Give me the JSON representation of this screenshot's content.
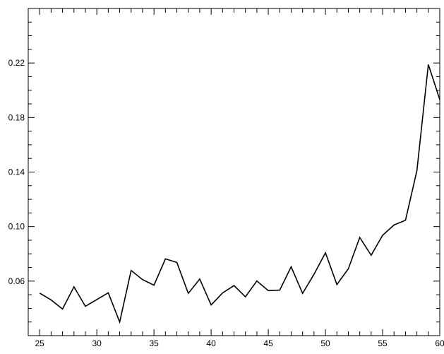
{
  "chart_data": {
    "type": "line",
    "title": "",
    "xlabel": "",
    "ylabel": "",
    "xlim": [
      24,
      60
    ],
    "ylim": [
      0.02,
      0.26
    ],
    "grid": false,
    "x_ticks_major": [
      25,
      30,
      35,
      40,
      45,
      50,
      55,
      60
    ],
    "x_tick_labels": [
      "25",
      "30",
      "35",
      "40",
      "45",
      "50",
      "55",
      "60"
    ],
    "y_ticks_major": [
      0.06,
      0.1,
      0.14,
      0.18,
      0.22
    ],
    "y_tick_labels": [
      "0.06",
      "0.10",
      "0.14",
      "0.18",
      "0.22"
    ],
    "line_color": "#000000",
    "series": [
      {
        "x": [
          25,
          26,
          27,
          28,
          29,
          30,
          31,
          32,
          33,
          34,
          35,
          36,
          37,
          38,
          39,
          40,
          41,
          42,
          43,
          44,
          45,
          46,
          47,
          48,
          49,
          50,
          51,
          52,
          53,
          54,
          55,
          56,
          57,
          58,
          59,
          60
        ],
        "y": [
          0.0512,
          0.0462,
          0.0395,
          0.0558,
          0.0415,
          0.0465,
          0.0514,
          0.03,
          0.0678,
          0.0611,
          0.057,
          0.0763,
          0.0737,
          0.051,
          0.0615,
          0.0425,
          0.0513,
          0.0567,
          0.0485,
          0.0601,
          0.053,
          0.0534,
          0.0705,
          0.051,
          0.065,
          0.0808,
          0.0575,
          0.069,
          0.092,
          0.079,
          0.0936,
          0.1012,
          0.1046,
          0.141,
          0.2189,
          0.1932
        ]
      }
    ]
  }
}
